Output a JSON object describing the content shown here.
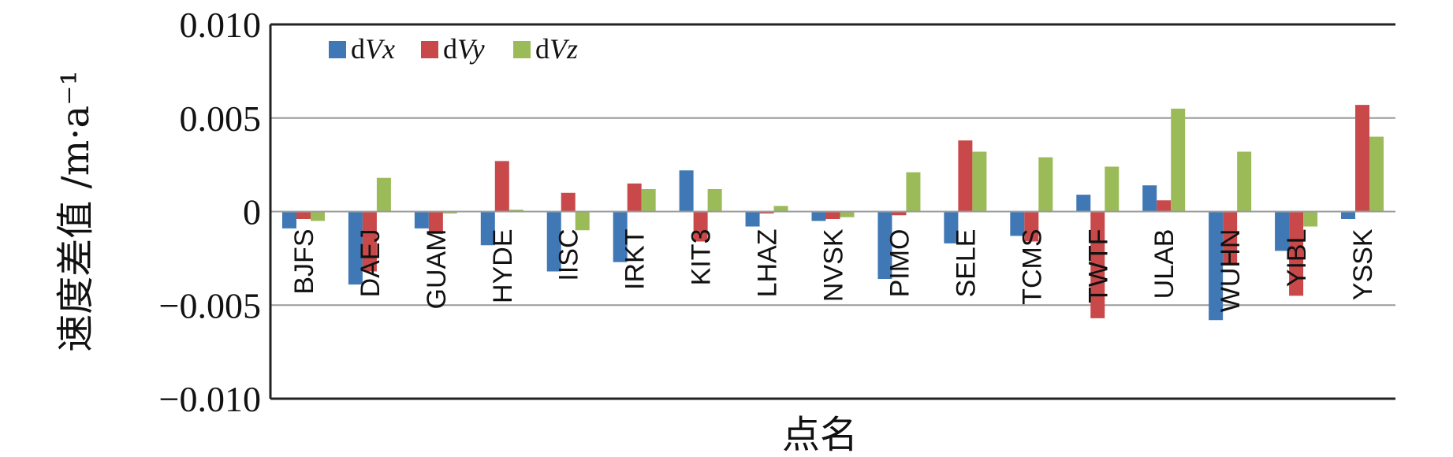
{
  "chart_data": {
    "type": "bar",
    "xlabel": "点名",
    "ylabel": "速度差值 /m·a⁻¹",
    "ylim": [
      -0.01,
      0.01
    ],
    "yticks": [
      0.01,
      0.005,
      0,
      -0.005,
      -0.01
    ],
    "ytick_labels": [
      "0.010",
      "0.005",
      "0",
      "−0.005",
      "−0.010"
    ],
    "grid": "horizontal",
    "legend_position": "top-left",
    "categories": [
      "BJFS",
      "DAEJ",
      "GUAM",
      "HYDE",
      "IISC",
      "IRKT",
      "KIT3",
      "LHAZ",
      "NVSK",
      "PIMO",
      "SELE",
      "TCMS",
      "TWTF",
      "ULAB",
      "WUHN",
      "YIBL",
      "YSSK"
    ],
    "series": [
      {
        "name": "dVx",
        "legend_prefix": "d",
        "legend_italic": "Vx",
        "color": "#3f78b5",
        "values": [
          -0.0009,
          -0.0039,
          -0.0009,
          -0.0018,
          -0.0032,
          -0.0027,
          0.0022,
          -0.0008,
          -0.0005,
          -0.0036,
          -0.0017,
          -0.0013,
          0.0009,
          0.0014,
          -0.0058,
          -0.0021,
          -0.0004
        ]
      },
      {
        "name": "dVy",
        "legend_prefix": "d",
        "legend_italic": "Vy",
        "color": "#c9494a",
        "values": [
          -0.0004,
          -0.0032,
          -0.0012,
          0.0027,
          0.001,
          0.0015,
          -0.0016,
          -0.0001,
          -0.0004,
          -0.0002,
          0.0038,
          -0.0016,
          -0.0057,
          0.0006,
          -0.0028,
          -0.0045,
          0.0057
        ]
      },
      {
        "name": "dVz",
        "legend_prefix": "d",
        "legend_italic": "Vz",
        "color": "#9bbb59",
        "values": [
          -0.0005,
          0.0018,
          -0.0001,
          0.0001,
          -0.001,
          0.0012,
          0.0012,
          0.0003,
          -0.0003,
          0.0021,
          0.0032,
          0.0029,
          0.0024,
          0.0055,
          0.0032,
          -0.0008,
          0.004
        ]
      }
    ]
  }
}
